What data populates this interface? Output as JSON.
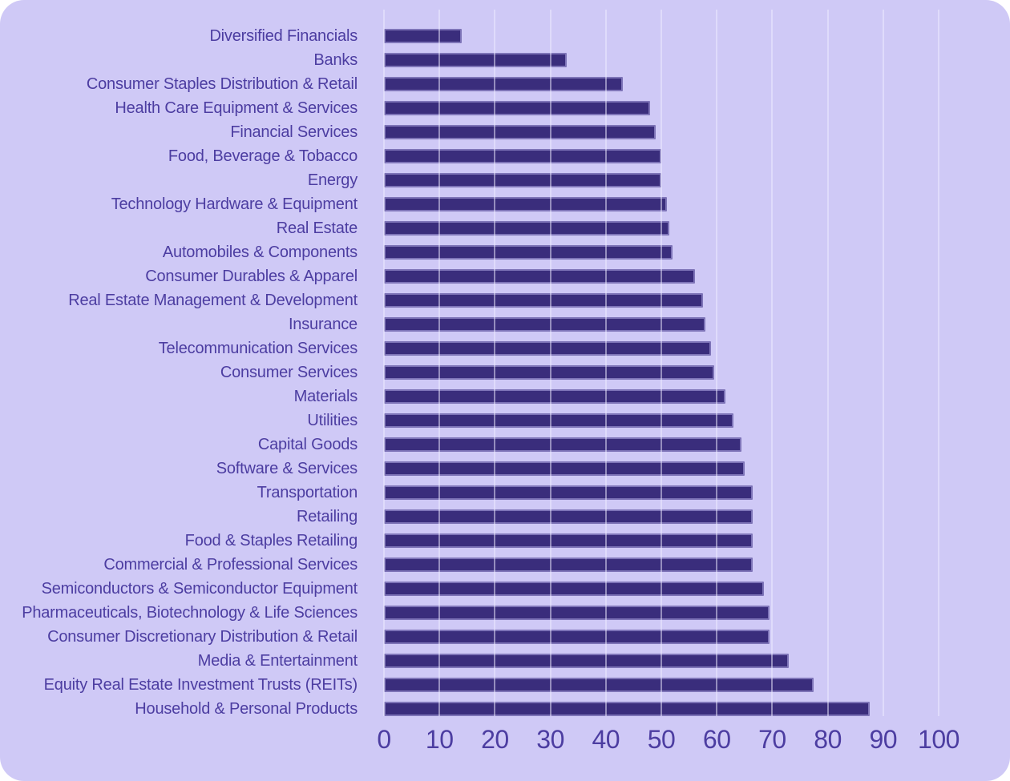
{
  "chart_data": {
    "type": "bar",
    "orientation": "horizontal",
    "title": "",
    "categories": [
      "Diversified Financials",
      "Banks",
      "Consumer Staples Distribution & Retail",
      "Health Care Equipment & Services",
      "Financial Services",
      "Food, Beverage & Tobacco",
      "Energy",
      "Technology Hardware & Equipment",
      "Real Estate",
      "Automobiles & Components",
      "Consumer Durables & Apparel",
      "Real Estate Management & Development",
      "Insurance",
      "Telecommunication Services",
      "Consumer Services",
      "Materials",
      "Utilities",
      "Capital Goods",
      "Software & Services",
      "Transportation",
      "Retailing",
      "Food & Staples Retailing",
      "Commercial & Professional Services",
      "Semiconductors & Semiconductor Equipment",
      "Pharmaceuticals, Biotechnology & Life Sciences",
      "Consumer Discretionary Distribution & Retail",
      "Media & Entertainment",
      "Equity Real Estate Investment Trusts (REITs)",
      "Household & Personal Products"
    ],
    "values": [
      14,
      33,
      43,
      48,
      49,
      50,
      50,
      51,
      51.5,
      52,
      56,
      57.5,
      58,
      59,
      59.5,
      61.5,
      63,
      64.5,
      65,
      66.5,
      66.5,
      66.5,
      66.5,
      68.5,
      69.5,
      69.5,
      73,
      77.5,
      87.5
    ],
    "xlabel": "",
    "ylabel": "",
    "xlim": [
      0,
      100
    ],
    "xticks": [
      0,
      10,
      20,
      30,
      40,
      50,
      60,
      70,
      80,
      90,
      100
    ],
    "grid": "vertical gridlines every 10, drawn over bars",
    "legend": "none",
    "colors": {
      "card_background": "#cfc9f6",
      "bar_fill": "#3a2d7c",
      "bar_border": "#7e74b8",
      "gridline": "rgba(240,237,255,0.5)",
      "text": "#4c3da1"
    }
  }
}
